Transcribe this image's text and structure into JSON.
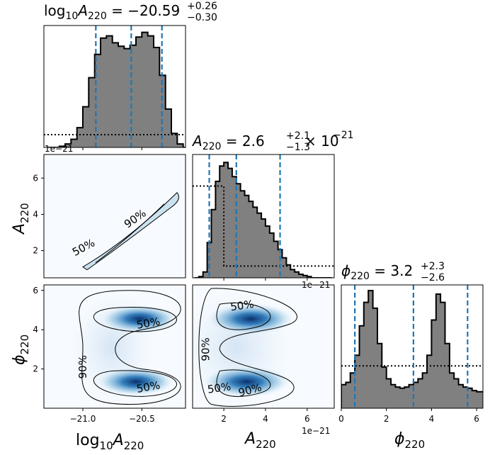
{
  "figure": {
    "type": "corner-plot",
    "parameters": [
      "log10A220",
      "A220",
      "phi220"
    ]
  },
  "titles": {
    "log10A220": {
      "main": "log",
      "sub1": "10",
      "sym": "A",
      "sub2": "220",
      "value": " = −20.59",
      "sup": "+0.26",
      "sub": "−0.30"
    },
    "A220": {
      "sym": "A",
      "sub2": "220",
      "value": " = 2.6",
      "sup": "+2.1",
      "sub": "−1.3",
      "tail": " × 10",
      "exp": "−21"
    },
    "phi220": {
      "sym": "ϕ",
      "sub2": "220",
      "value": " = 3.2",
      "sup": "+2.3",
      "sub": "−2.6"
    }
  },
  "axis_labels": {
    "x": [
      {
        "main": "log",
        "sub1": "10",
        "sym": "A",
        "sub2": "220"
      },
      {
        "main": "",
        "sub1": "",
        "sym": "A",
        "sub2": "220"
      },
      {
        "main": "",
        "sub1": "",
        "sym": "ϕ",
        "sub2": "220"
      }
    ],
    "y": [
      {
        "sym": "A",
        "sub2": "220"
      },
      {
        "sym": "ϕ",
        "sub2": "220"
      }
    ]
  },
  "offset_text": "1e−21",
  "colors": {
    "hist_fill": "#808080",
    "quantile_line": "#1f77b4",
    "density_dark": "#08306b",
    "density_mid": "#2171b5",
    "density_light": "#deebf7"
  },
  "chart_data": {
    "type": "corner",
    "diagonal": [
      {
        "param": "log10A220",
        "xlim": [
          -21.33,
          -20.13
        ],
        "quantiles": [
          -20.89,
          -20.59,
          -20.33
        ],
        "prior_level": 0.11,
        "ticks": [
          -21.0,
          -20.5
        ],
        "tick_labels": [
          "−21.0",
          "−20.5"
        ],
        "hist_x": [
          -21.3,
          -21.25,
          -21.2,
          -21.15,
          -21.1,
          -21.05,
          -21.0,
          -20.95,
          -20.9,
          -20.85,
          -20.8,
          -20.75,
          -20.7,
          -20.65,
          -20.6,
          -20.55,
          -20.5,
          -20.45,
          -20.4,
          -20.35,
          -20.3,
          -20.25,
          -20.2,
          -20.15
        ],
        "hist_y": [
          0.0,
          0.0,
          0.01,
          0.03,
          0.07,
          0.17,
          0.35,
          0.6,
          0.8,
          0.94,
          0.96,
          0.9,
          0.87,
          0.85,
          0.88,
          0.95,
          0.99,
          0.96,
          0.86,
          0.62,
          0.33,
          0.12,
          0.03,
          0.0
        ]
      },
      {
        "param": "A220",
        "xlim": [
          0.5,
          7.3
        ],
        "quantiles": [
          1.3,
          2.6,
          4.7
        ],
        "prior_median": 2.0,
        "prior_level": 0.1,
        "ticks": [
          2,
          4,
          6
        ],
        "tick_labels": [
          "2",
          "4",
          "6"
        ],
        "hist_x": [
          0.6,
          0.8,
          1.0,
          1.2,
          1.4,
          1.6,
          1.8,
          2.0,
          2.2,
          2.4,
          2.6,
          2.8,
          3.0,
          3.2,
          3.4,
          3.6,
          3.8,
          4.0,
          4.2,
          4.4,
          4.6,
          4.8,
          5.0,
          5.2,
          5.4,
          5.6,
          5.8,
          6.0,
          6.2,
          6.4,
          6.6,
          6.8,
          7.0
        ],
        "hist_y": [
          0.0,
          0.01,
          0.05,
          0.3,
          0.58,
          0.82,
          0.95,
          0.98,
          0.93,
          0.86,
          0.8,
          0.74,
          0.7,
          0.65,
          0.6,
          0.55,
          0.5,
          0.44,
          0.38,
          0.31,
          0.24,
          0.17,
          0.11,
          0.07,
          0.05,
          0.03,
          0.02,
          0.01,
          0.0,
          0.0,
          0.0,
          0.0,
          0.0
        ]
      },
      {
        "param": "phi220",
        "xlim": [
          0.0,
          6.28
        ],
        "quantiles": [
          0.6,
          3.2,
          5.6
        ],
        "prior_level": 0.36,
        "ticks": [
          0,
          2,
          4,
          6
        ],
        "tick_labels": [
          "0",
          "2",
          "4",
          "6"
        ],
        "hist_x": [
          0.0,
          0.2,
          0.4,
          0.6,
          0.8,
          1.0,
          1.2,
          1.4,
          1.6,
          1.8,
          2.0,
          2.2,
          2.4,
          2.6,
          2.8,
          3.0,
          3.2,
          3.4,
          3.6,
          3.8,
          4.0,
          4.2,
          4.4,
          4.6,
          4.8,
          5.0,
          5.2,
          5.4,
          5.6,
          5.8,
          6.0,
          6.2
        ],
        "hist_y": [
          0.2,
          0.22,
          0.3,
          0.45,
          0.7,
          0.9,
          1.0,
          0.85,
          0.55,
          0.35,
          0.25,
          0.2,
          0.18,
          0.17,
          0.18,
          0.2,
          0.22,
          0.25,
          0.3,
          0.45,
          0.75,
          0.97,
          0.9,
          0.55,
          0.3,
          0.25,
          0.2,
          0.18,
          0.17,
          0.15,
          0.14,
          0.14
        ]
      }
    ],
    "panels_2d": [
      {
        "x": "log10A220",
        "y": "A220",
        "xlim": [
          -21.33,
          -20.13
        ],
        "ylim": [
          0.5,
          7.3
        ],
        "y_ticks": [
          2,
          4,
          6
        ],
        "y_tick_labels": [
          "2",
          "4",
          "6"
        ],
        "contour_labels": [
          {
            "text": "50%",
            "x": -20.98,
            "y": 2.0
          },
          {
            "text": "90%",
            "x": -20.54,
            "y": 3.6
          }
        ]
      },
      {
        "x": "log10A220",
        "y": "phi220",
        "xlim": [
          -21.33,
          -20.13
        ],
        "ylim": [
          0.0,
          6.28
        ],
        "y_ticks": [
          2,
          4,
          6
        ],
        "y_tick_labels": [
          "2",
          "4",
          "6"
        ],
        "modes": [
          {
            "x": -20.52,
            "y": 4.55
          },
          {
            "x": -20.55,
            "y": 1.35
          }
        ],
        "contour_labels": [
          {
            "text": "50%",
            "x": -20.44,
            "y": 4.15
          },
          {
            "text": "50%",
            "x": -20.44,
            "y": 0.9
          },
          {
            "text": "90%",
            "x": -20.97,
            "y": 2.1
          }
        ]
      },
      {
        "x": "A220",
        "y": "phi220",
        "xlim": [
          0.5,
          7.3
        ],
        "ylim": [
          0.0,
          6.28
        ],
        "modes": [
          {
            "x": 3.3,
            "y": 4.55
          },
          {
            "x": 3.1,
            "y": 1.35
          }
        ],
        "contour_labels": [
          {
            "text": "50%",
            "x": 2.9,
            "y": 5.05
          },
          {
            "text": "50%",
            "x": 1.8,
            "y": 0.85
          },
          {
            "text": "90%",
            "x": 3.3,
            "y": 0.75
          },
          {
            "text": "90%",
            "x": 1.3,
            "y": 3.0
          }
        ]
      }
    ]
  }
}
